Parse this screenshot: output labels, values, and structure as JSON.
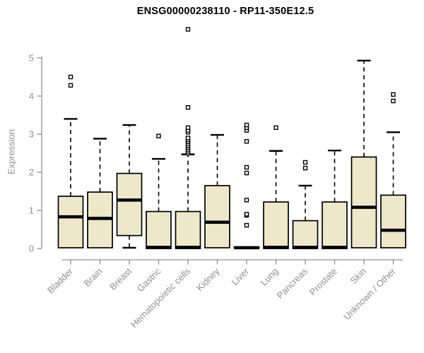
{
  "title": "ENSG00000238110 - RP11-350E12.5",
  "colors": {
    "background": "#FFFFFF",
    "box_fill": "#EDE8C9",
    "box_border": "#000000",
    "median": "#000000",
    "whisker": "#000000",
    "outlier_stroke": "#000000",
    "outlier_fill": "#FFFFFF",
    "axis": "#8F8F8F",
    "tick_label": "#8F8F8F",
    "title": "#000000"
  },
  "chart_data": {
    "type": "boxplot",
    "title": "ENSG00000238110 - RP11-350E12.5",
    "xlabel": "",
    "ylabel": "Expression",
    "ylim": [
      0,
      5
    ],
    "yticks": [
      0,
      1,
      2,
      3,
      4,
      5
    ],
    "grid": false,
    "legend": "none",
    "categories": [
      "Bladder",
      "Brain",
      "Breast",
      "Gastric",
      "Hematopoietic cells",
      "Kidney",
      "Liver",
      "Lung",
      "Pancreas",
      "Prostate",
      "Skin",
      "Unknown / Other"
    ],
    "series": [
      {
        "name": "Bladder",
        "low": 0.02,
        "q1": 0.02,
        "median": 0.83,
        "q3": 1.37,
        "high": 3.4,
        "outliers": [
          4.28,
          4.5
        ]
      },
      {
        "name": "Brain",
        "low": 0.02,
        "q1": 0.02,
        "median": 0.79,
        "q3": 1.48,
        "high": 2.88,
        "outliers": []
      },
      {
        "name": "Breast",
        "low": 0.02,
        "q1": 0.34,
        "median": 1.27,
        "q3": 1.97,
        "high": 3.24,
        "outliers": []
      },
      {
        "name": "Gastric",
        "low": 0.0,
        "q1": 0.0,
        "median": 0.03,
        "q3": 0.97,
        "high": 2.35,
        "outliers": [
          2.95
        ]
      },
      {
        "name": "Hematopoietic cells",
        "low": 0.0,
        "q1": 0.0,
        "median": 0.03,
        "q3": 0.97,
        "high": 2.47,
        "outliers": [
          2.5,
          2.55,
          2.6,
          2.65,
          2.7,
          2.75,
          2.8,
          2.85,
          2.9,
          3.05,
          3.1,
          3.17,
          3.7,
          5.75
        ]
      },
      {
        "name": "Kidney",
        "low": 0.02,
        "q1": 0.02,
        "median": 0.69,
        "q3": 1.65,
        "high": 2.98,
        "outliers": []
      },
      {
        "name": "Liver",
        "low": 0.01,
        "q1": 0.01,
        "median": 0.02,
        "q3": 0.04,
        "high": 0.04,
        "outliers": [
          0.61,
          0.87,
          0.9,
          1.27,
          1.98,
          2.13,
          2.81,
          3.1,
          3.17,
          3.24
        ]
      },
      {
        "name": "Lung",
        "low": 0.0,
        "q1": 0.0,
        "median": 0.03,
        "q3": 1.22,
        "high": 2.56,
        "outliers": [
          3.17
        ]
      },
      {
        "name": "Pancreas",
        "low": 0.0,
        "q1": 0.0,
        "median": 0.03,
        "q3": 0.73,
        "high": 1.65,
        "outliers": [
          2.11,
          2.26
        ]
      },
      {
        "name": "Prostate",
        "low": 0.0,
        "q1": 0.0,
        "median": 0.03,
        "q3": 1.22,
        "high": 2.57,
        "outliers": []
      },
      {
        "name": "Skin",
        "low": 0.02,
        "q1": 0.02,
        "median": 1.08,
        "q3": 2.4,
        "high": 4.93,
        "outliers": []
      },
      {
        "name": "Unknown / Other",
        "low": 0.02,
        "q1": 0.02,
        "median": 0.48,
        "q3": 1.4,
        "high": 3.05,
        "outliers": [
          3.87,
          4.04
        ]
      }
    ]
  }
}
